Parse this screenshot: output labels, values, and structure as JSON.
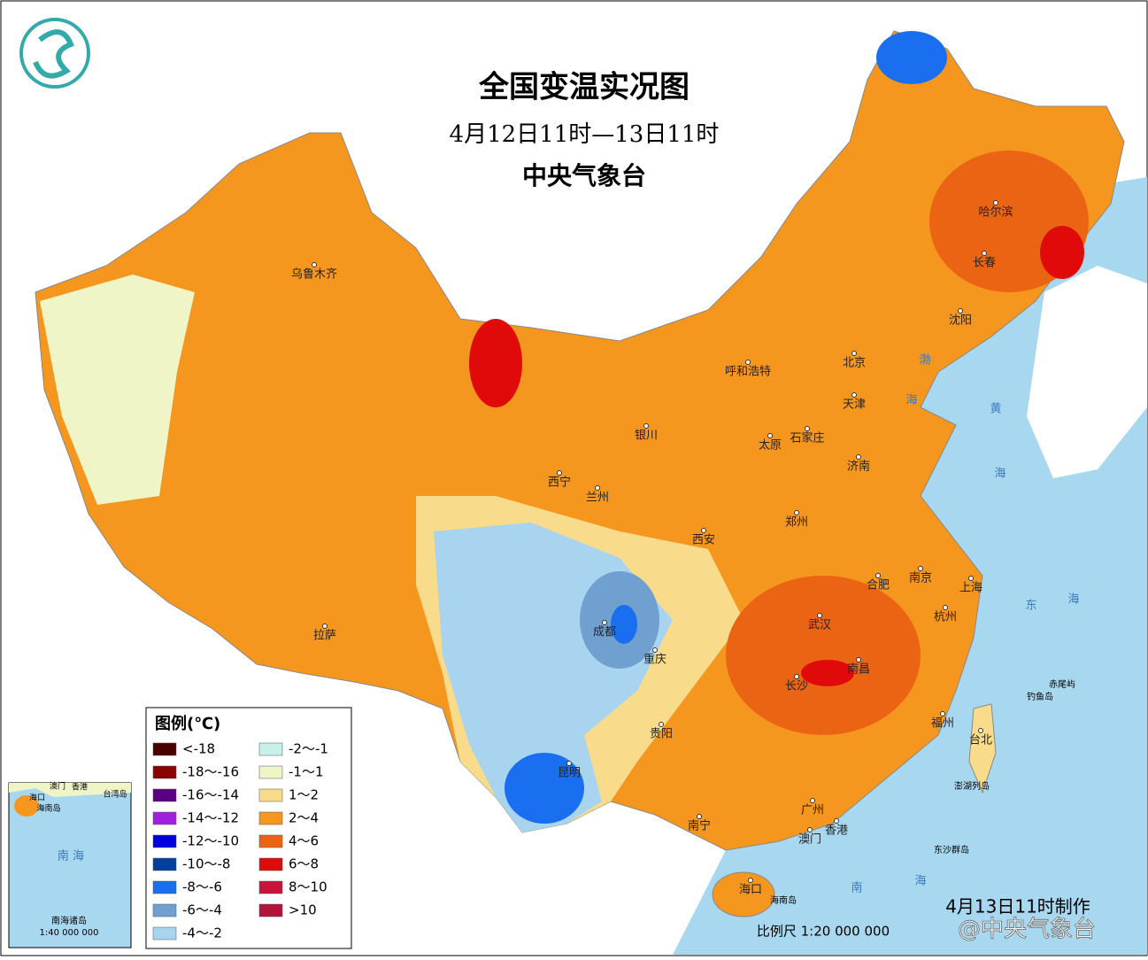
{
  "header": {
    "title": "全国变温实况图",
    "subtitle": "4月12日11时—13日11时",
    "agency": "中央气象台"
  },
  "legend": {
    "title": "图例(℃)",
    "items": [
      {
        "label": "<-18",
        "color": "#4a0000"
      },
      {
        "label": "-18～-16",
        "color": "#8b0000"
      },
      {
        "label": "-16～-14",
        "color": "#5a0080"
      },
      {
        "label": "-14～-12",
        "color": "#a020e0"
      },
      {
        "label": "-12～-10",
        "color": "#0000e0"
      },
      {
        "label": "-10～-8",
        "color": "#003f9e"
      },
      {
        "label": "-8～-6",
        "color": "#1a6ef0"
      },
      {
        "label": "-6～-4",
        "color": "#6fa0d0"
      },
      {
        "label": "-4～-2",
        "color": "#a8d4f0"
      },
      {
        "label": "-2～-1",
        "color": "#c8f0e8"
      },
      {
        "label": "-1～1",
        "color": "#f0f5c8"
      },
      {
        "label": "1～2",
        "color": "#f8dc8c"
      },
      {
        "label": "2～4",
        "color": "#f5961e"
      },
      {
        "label": "4～6",
        "color": "#eb6414"
      },
      {
        "label": "6～8",
        "color": "#e10a0a"
      },
      {
        "label": "8～10",
        "color": "#c8143c"
      },
      {
        "label": ">10",
        "color": "#b4143c"
      }
    ]
  },
  "cities": [
    "乌鲁木齐",
    "呼和浩特",
    "北京",
    "天津",
    "哈尔滨",
    "长春",
    "沈阳",
    "银川",
    "太原",
    "石家庄",
    "济南",
    "西宁",
    "兰州",
    "郑州",
    "西安",
    "合肥",
    "南京",
    "上海",
    "杭州",
    "武汉",
    "成都",
    "重庆",
    "拉萨",
    "长沙",
    "南昌",
    "贵阳",
    "福州",
    "台北",
    "昆明",
    "南宁",
    "广州",
    "澳门",
    "香港",
    "海口"
  ],
  "islands": [
    "海南岛",
    "钓鱼岛",
    "赤尾屿",
    "澎湖列岛",
    "东沙群岛"
  ],
  "seas": [
    "渤",
    "海",
    "黄",
    "海",
    "东",
    "海",
    "南",
    "海"
  ],
  "inset": {
    "title": "南海诸岛",
    "scale": "1:40 000 000",
    "sea": "南 海",
    "labels": [
      "澳门",
      "香港",
      "海口",
      "海南岛",
      "台湾岛"
    ]
  },
  "footer": {
    "scale": "比例尺 1:20 000 000",
    "made": "4月13日11时制作",
    "watermark": "@中央气象台"
  }
}
